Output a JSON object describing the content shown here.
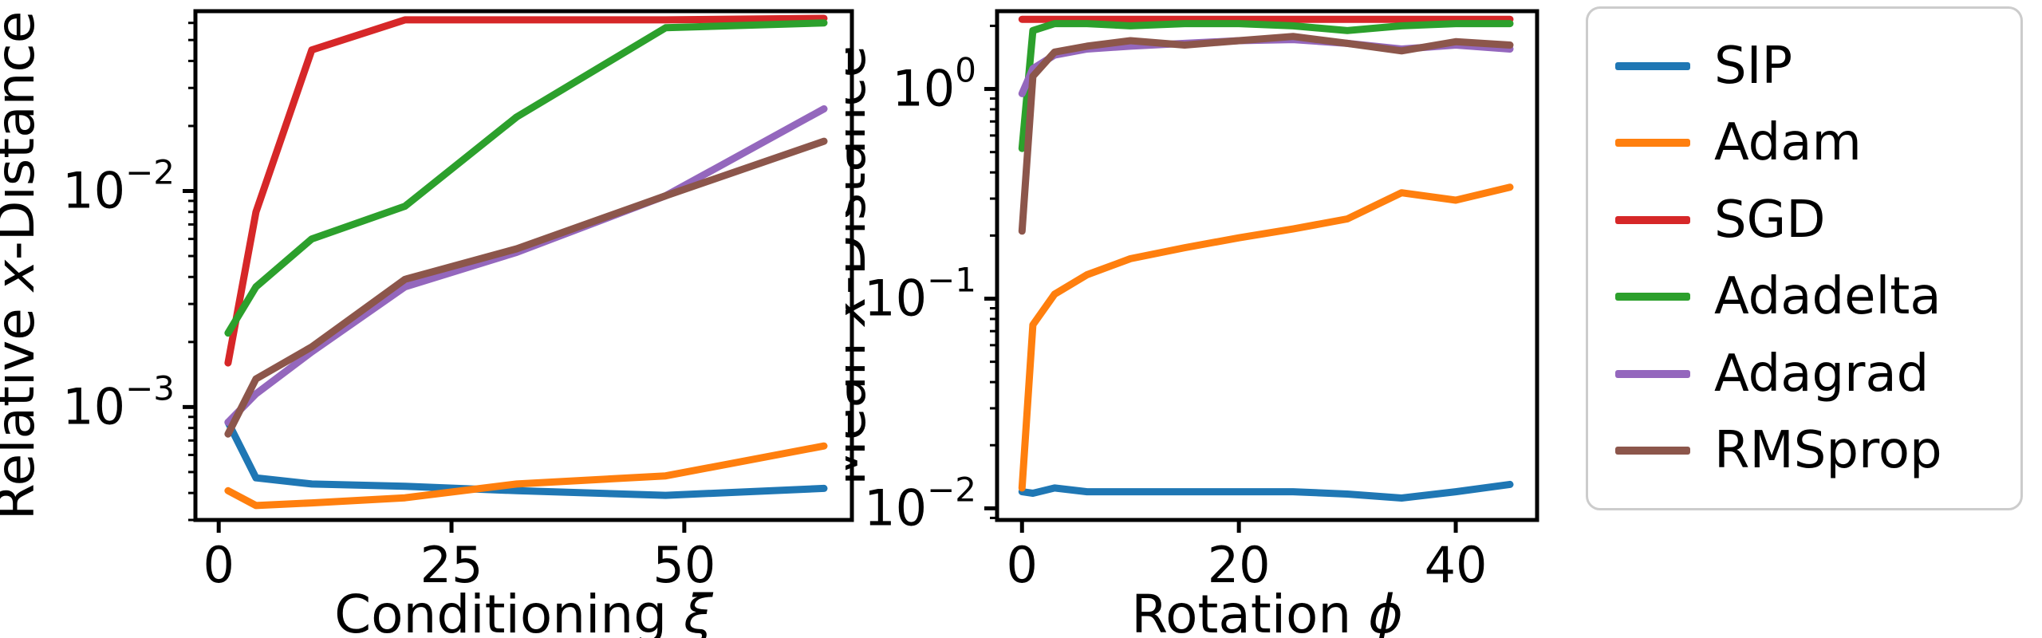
{
  "figure": {
    "background": "#ffffff"
  },
  "legend": {
    "border_color": "#cccccc",
    "items": [
      {
        "label": "SIP",
        "color": "#1f77b4"
      },
      {
        "label": "Adam",
        "color": "#ff7f0e"
      },
      {
        "label": "SGD",
        "color": "#d62728"
      },
      {
        "label": "Adadelta",
        "color": "#2ca02c"
      },
      {
        "label": "Adagrad",
        "color": "#9467bd"
      },
      {
        "label": "RMSprop",
        "color": "#8c564b"
      }
    ]
  },
  "chart_data": [
    {
      "type": "line",
      "title": "",
      "xlabel": "Conditioning ξ",
      "xlabel_rich": [
        [
          "Conditioning ",
          false
        ],
        [
          "ξ",
          true
        ]
      ],
      "ylabel": "Relative x-Distance",
      "ylabel_rich": [
        [
          "Relative ",
          false
        ],
        [
          "x",
          true
        ],
        [
          "-Distance",
          false
        ]
      ],
      "xscale": "linear",
      "yscale": "log",
      "xlim": [
        -2.5,
        68
      ],
      "ylim": [
        0.0003,
        0.068
      ],
      "xticks": [
        0,
        25,
        50
      ],
      "yticks_exp": [
        -3,
        -2
      ],
      "grid": false,
      "x": [
        1,
        4,
        10,
        20,
        32,
        48,
        65
      ],
      "series": [
        {
          "name": "SIP",
          "color": "#1f77b4",
          "values": [
            0.00085,
            0.00047,
            0.00044,
            0.00043,
            0.00041,
            0.00039,
            0.00042
          ]
        },
        {
          "name": "Adam",
          "color": "#ff7f0e",
          "values": [
            0.00041,
            0.00035,
            0.00036,
            0.00038,
            0.00044,
            0.00048,
            0.00066
          ]
        },
        {
          "name": "SGD",
          "color": "#d62728",
          "values": [
            0.0016,
            0.008,
            0.045,
            0.062,
            0.062,
            0.062,
            0.063
          ]
        },
        {
          "name": "Adadelta",
          "color": "#2ca02c",
          "values": [
            0.0022,
            0.0036,
            0.006,
            0.0085,
            0.022,
            0.057,
            0.06
          ]
        },
        {
          "name": "Adagrad",
          "color": "#9467bd",
          "values": [
            0.00085,
            0.00115,
            0.0018,
            0.0036,
            0.0052,
            0.0095,
            0.024
          ]
        },
        {
          "name": "RMSprop",
          "color": "#8c564b",
          "values": [
            0.00075,
            0.00135,
            0.0019,
            0.0039,
            0.0054,
            0.0095,
            0.017
          ]
        }
      ]
    },
    {
      "type": "line",
      "title": "",
      "xlabel": "Rotation ϕ",
      "xlabel_rich": [
        [
          "Rotation ",
          false
        ],
        [
          "ϕ",
          true
        ]
      ],
      "ylabel": "Mean x-Distance",
      "ylabel_rich": [
        [
          "Mean ",
          false
        ],
        [
          "x",
          true
        ],
        [
          "-Distance",
          false
        ]
      ],
      "xscale": "linear",
      "yscale": "log",
      "xlim": [
        -2.3,
        47.5
      ],
      "ylim": [
        0.0088,
        2.35
      ],
      "xticks": [
        0,
        20,
        40
      ],
      "yticks_exp": [
        -2,
        -1,
        0
      ],
      "grid": false,
      "x": [
        0,
        1,
        3,
        6,
        10,
        15,
        20,
        25,
        30,
        35,
        40,
        45
      ],
      "series": [
        {
          "name": "SIP",
          "color": "#1f77b4",
          "values": [
            0.012,
            0.0118,
            0.0125,
            0.012,
            0.012,
            0.012,
            0.012,
            0.012,
            0.0117,
            0.0112,
            0.012,
            0.013
          ]
        },
        {
          "name": "Adam",
          "color": "#ff7f0e",
          "values": [
            0.0125,
            0.075,
            0.105,
            0.13,
            0.155,
            0.175,
            0.195,
            0.215,
            0.24,
            0.32,
            0.295,
            0.34
          ]
        },
        {
          "name": "SGD",
          "color": "#d62728",
          "values": [
            2.15,
            2.15,
            2.15,
            2.15,
            2.15,
            2.15,
            2.15,
            2.15,
            2.15,
            2.15,
            2.15,
            2.15
          ]
        },
        {
          "name": "Adadelta",
          "color": "#2ca02c",
          "values": [
            0.52,
            1.9,
            2.05,
            2.05,
            2.0,
            2.05,
            2.05,
            2.0,
            1.9,
            2.0,
            2.05,
            2.05
          ]
        },
        {
          "name": "Adagrad",
          "color": "#9467bd",
          "values": [
            0.95,
            1.25,
            1.45,
            1.55,
            1.6,
            1.65,
            1.7,
            1.72,
            1.65,
            1.55,
            1.62,
            1.55
          ]
        },
        {
          "name": "RMSprop",
          "color": "#8c564b",
          "values": [
            0.21,
            1.15,
            1.5,
            1.6,
            1.7,
            1.62,
            1.7,
            1.78,
            1.65,
            1.52,
            1.68,
            1.62
          ]
        }
      ]
    }
  ]
}
